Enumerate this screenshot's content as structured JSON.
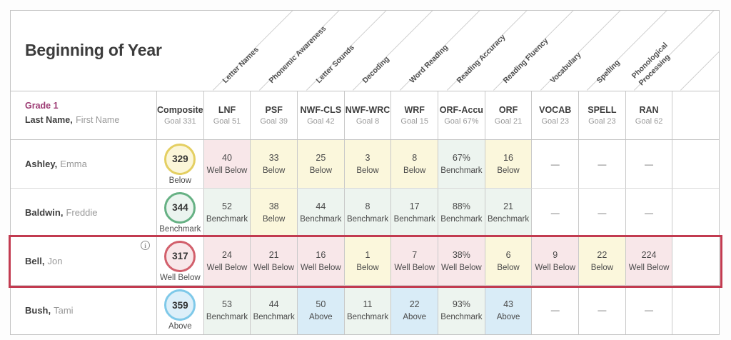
{
  "title": "Beginning of Year",
  "grade_label": "Grade 1",
  "name_header_bold": "Last Name,",
  "name_header_light": "First Name",
  "diagonal_headers": [
    "Letter Names",
    "Phonemic Awareness",
    "Letter Sounds",
    "Decoding",
    "Word Reading",
    "Reading Accuracy",
    "Reading Fluency",
    "Vocabulary",
    "Spelling",
    "Phonological Processing"
  ],
  "columns": [
    {
      "abbr": "Composite",
      "goal": "Goal 331"
    },
    {
      "abbr": "LNF",
      "goal": "Goal 51"
    },
    {
      "abbr": "PSF",
      "goal": "Goal 39"
    },
    {
      "abbr": "NWF-CLS",
      "goal": "Goal 42"
    },
    {
      "abbr": "NWF-WRC",
      "goal": "Goal 8"
    },
    {
      "abbr": "WRF",
      "goal": "Goal 15"
    },
    {
      "abbr": "ORF-Accu",
      "goal": "Goal 67%"
    },
    {
      "abbr": "ORF",
      "goal": "Goal 21"
    },
    {
      "abbr": "VOCAB",
      "goal": "Goal 23"
    },
    {
      "abbr": "SPELL",
      "goal": "Goal 23"
    },
    {
      "abbr": "RAN",
      "goal": "Goal 62"
    }
  ],
  "empty_cell_dash": "—",
  "status_colors": {
    "well_below_bg": "#f8e7e9",
    "below_bg": "#fbf7dc",
    "benchmark_bg": "#edf4ef",
    "above_bg": "#d9ecf7",
    "well_below_ring": "#d2606c",
    "below_ring": "#e4cf62",
    "benchmark_ring": "#66b184",
    "above_ring": "#7fc9e9",
    "highlight_border": "#c23b50",
    "grade_accent": "#9d3c74"
  },
  "students": [
    {
      "last": "Ashley,",
      "first": "Emma",
      "has_info_icon": false,
      "highlighted": false,
      "composite": {
        "score": "329",
        "level": "Below"
      },
      "scores": [
        {
          "value": "40",
          "level": "Well Below"
        },
        {
          "value": "33",
          "level": "Below"
        },
        {
          "value": "25",
          "level": "Below"
        },
        {
          "value": "3",
          "level": "Below"
        },
        {
          "value": "8",
          "level": "Below"
        },
        {
          "value": "67%",
          "level": "Benchmark"
        },
        {
          "value": "16",
          "level": "Below"
        },
        {
          "value": "—",
          "level": ""
        },
        {
          "value": "—",
          "level": ""
        },
        {
          "value": "—",
          "level": ""
        }
      ]
    },
    {
      "last": "Baldwin,",
      "first": "Freddie",
      "has_info_icon": false,
      "highlighted": false,
      "composite": {
        "score": "344",
        "level": "Benchmark"
      },
      "scores": [
        {
          "value": "52",
          "level": "Benchmark"
        },
        {
          "value": "38",
          "level": "Below"
        },
        {
          "value": "44",
          "level": "Benchmark"
        },
        {
          "value": "8",
          "level": "Benchmark"
        },
        {
          "value": "17",
          "level": "Benchmark"
        },
        {
          "value": "88%",
          "level": "Benchmark"
        },
        {
          "value": "21",
          "level": "Benchmark"
        },
        {
          "value": "—",
          "level": ""
        },
        {
          "value": "—",
          "level": ""
        },
        {
          "value": "—",
          "level": ""
        }
      ]
    },
    {
      "last": "Bell,",
      "first": "Jon",
      "has_info_icon": true,
      "highlighted": true,
      "composite": {
        "score": "317",
        "level": "Well Below"
      },
      "scores": [
        {
          "value": "24",
          "level": "Well Below"
        },
        {
          "value": "21",
          "level": "Well Below"
        },
        {
          "value": "16",
          "level": "Well Below"
        },
        {
          "value": "1",
          "level": "Below"
        },
        {
          "value": "7",
          "level": "Well Below"
        },
        {
          "value": "38%",
          "level": "Well Below"
        },
        {
          "value": "6",
          "level": "Below"
        },
        {
          "value": "9",
          "level": "Well Below"
        },
        {
          "value": "22",
          "level": "Below"
        },
        {
          "value": "224",
          "level": "Well Below"
        }
      ]
    },
    {
      "last": "Bush,",
      "first": "Tami",
      "has_info_icon": false,
      "highlighted": false,
      "composite": {
        "score": "359",
        "level": "Above"
      },
      "scores": [
        {
          "value": "53",
          "level": "Benchmark"
        },
        {
          "value": "44",
          "level": "Benchmark"
        },
        {
          "value": "50",
          "level": "Above"
        },
        {
          "value": "11",
          "level": "Benchmark"
        },
        {
          "value": "22",
          "level": "Above"
        },
        {
          "value": "93%",
          "level": "Benchmark"
        },
        {
          "value": "43",
          "level": "Above"
        },
        {
          "value": "—",
          "level": ""
        },
        {
          "value": "—",
          "level": ""
        },
        {
          "value": "—",
          "level": ""
        }
      ]
    }
  ]
}
